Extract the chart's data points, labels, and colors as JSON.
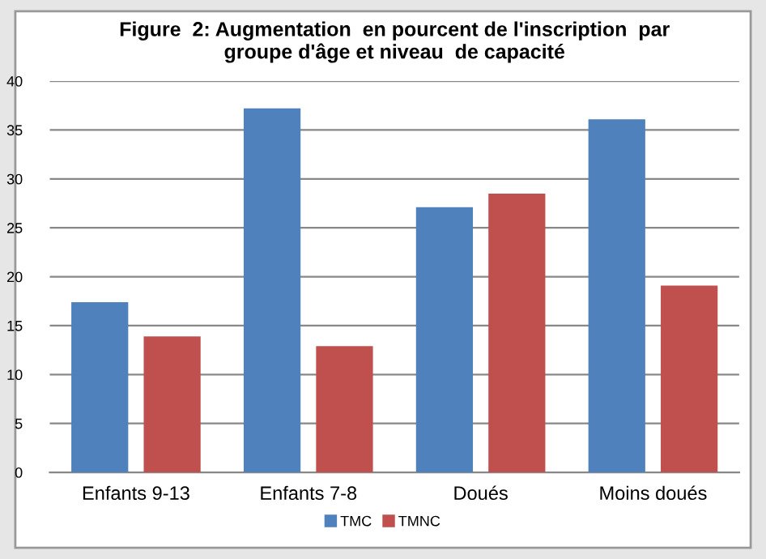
{
  "chart_data": {
    "type": "bar",
    "title": "Figure  2: Augmentation  en pourcent de l'inscription  par\ngroupe d'âge et niveau  de capacité",
    "categories": [
      "Enfants 9-13",
      "Enfants 7-8",
      "Doués",
      "Moins doués"
    ],
    "series": [
      {
        "name": "TMC",
        "color": "#4f81bd",
        "values": [
          17.4,
          37.2,
          27.1,
          36.1
        ]
      },
      {
        "name": "TMNC",
        "color": "#c0504d",
        "values": [
          13.9,
          12.9,
          28.5,
          19.1
        ]
      }
    ],
    "ylim": [
      0,
      40
    ],
    "yticks": [
      0,
      5,
      10,
      15,
      20,
      25,
      30,
      35,
      40
    ],
    "grid": "y",
    "legend": "bottom"
  }
}
